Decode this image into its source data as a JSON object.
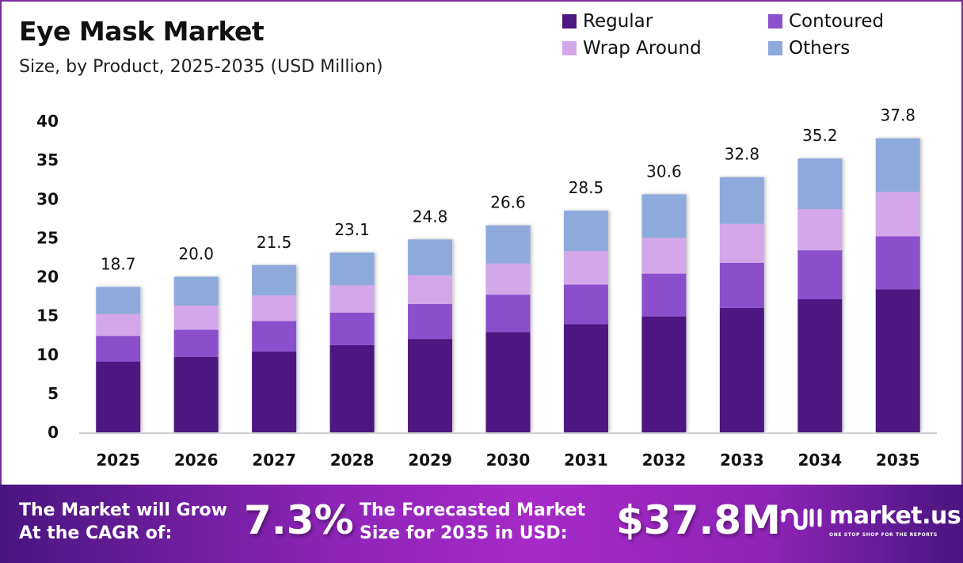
{
  "header": {
    "title": "Eye Mask Market",
    "subtitle": "Size, by Product, 2025-2035 (USD Million)"
  },
  "legend": [
    {
      "label": "Regular",
      "color": "#4e1681"
    },
    {
      "label": "Contoured",
      "color": "#8c50cc"
    },
    {
      "label": "Wrap Around",
      "color": "#d3a7ea"
    },
    {
      "label": "Others",
      "color": "#8eaadc"
    }
  ],
  "chart_data": {
    "type": "bar",
    "stacked": true,
    "title": "Eye Mask Market",
    "subtitle": "Size, by Product, 2025-2035 (USD Million)",
    "xlabel": "",
    "ylabel": "",
    "ylim": [
      0,
      40
    ],
    "yticks": [
      0,
      5,
      10,
      15,
      20,
      25,
      30,
      35,
      40
    ],
    "grid": false,
    "legend_position": "top-right",
    "categories": [
      "2025",
      "2026",
      "2027",
      "2028",
      "2029",
      "2030",
      "2031",
      "2032",
      "2033",
      "2034",
      "2035"
    ],
    "series": [
      {
        "name": "Regular",
        "color": "#4e1681",
        "values": [
          9.1,
          9.7,
          10.4,
          11.2,
          12.0,
          12.9,
          13.9,
          14.9,
          16.0,
          17.1,
          18.4
        ]
      },
      {
        "name": "Contoured",
        "color": "#8c50cc",
        "values": [
          3.3,
          3.5,
          3.9,
          4.2,
          4.5,
          4.8,
          5.1,
          5.5,
          5.8,
          6.3,
          6.8
        ]
      },
      {
        "name": "Wrap Around",
        "color": "#d3a7ea",
        "values": [
          2.8,
          3.1,
          3.3,
          3.5,
          3.7,
          4.0,
          4.3,
          4.6,
          5.0,
          5.3,
          5.7
        ]
      },
      {
        "name": "Others",
        "color": "#8eaadc",
        "values": [
          3.5,
          3.7,
          3.9,
          4.2,
          4.6,
          4.9,
          5.2,
          5.6,
          6.0,
          6.5,
          6.9
        ]
      }
    ],
    "totals": [
      "18.7",
      "20.0",
      "21.5",
      "23.1",
      "24.8",
      "26.6",
      "28.5",
      "30.6",
      "32.8",
      "35.2",
      "37.8"
    ]
  },
  "banner": {
    "cagr_label_line1": "The Market will Grow",
    "cagr_label_line2": "At the CAGR of:",
    "cagr_value": "7.3%",
    "forecast_label_line1": "The Forecasted Market",
    "forecast_label_line2": "Size for 2035 in USD:",
    "forecast_value": "$37.8M",
    "logo_name": "market.us",
    "logo_tagline": "ONE STOP SHOP FOR THE REPORTS"
  }
}
